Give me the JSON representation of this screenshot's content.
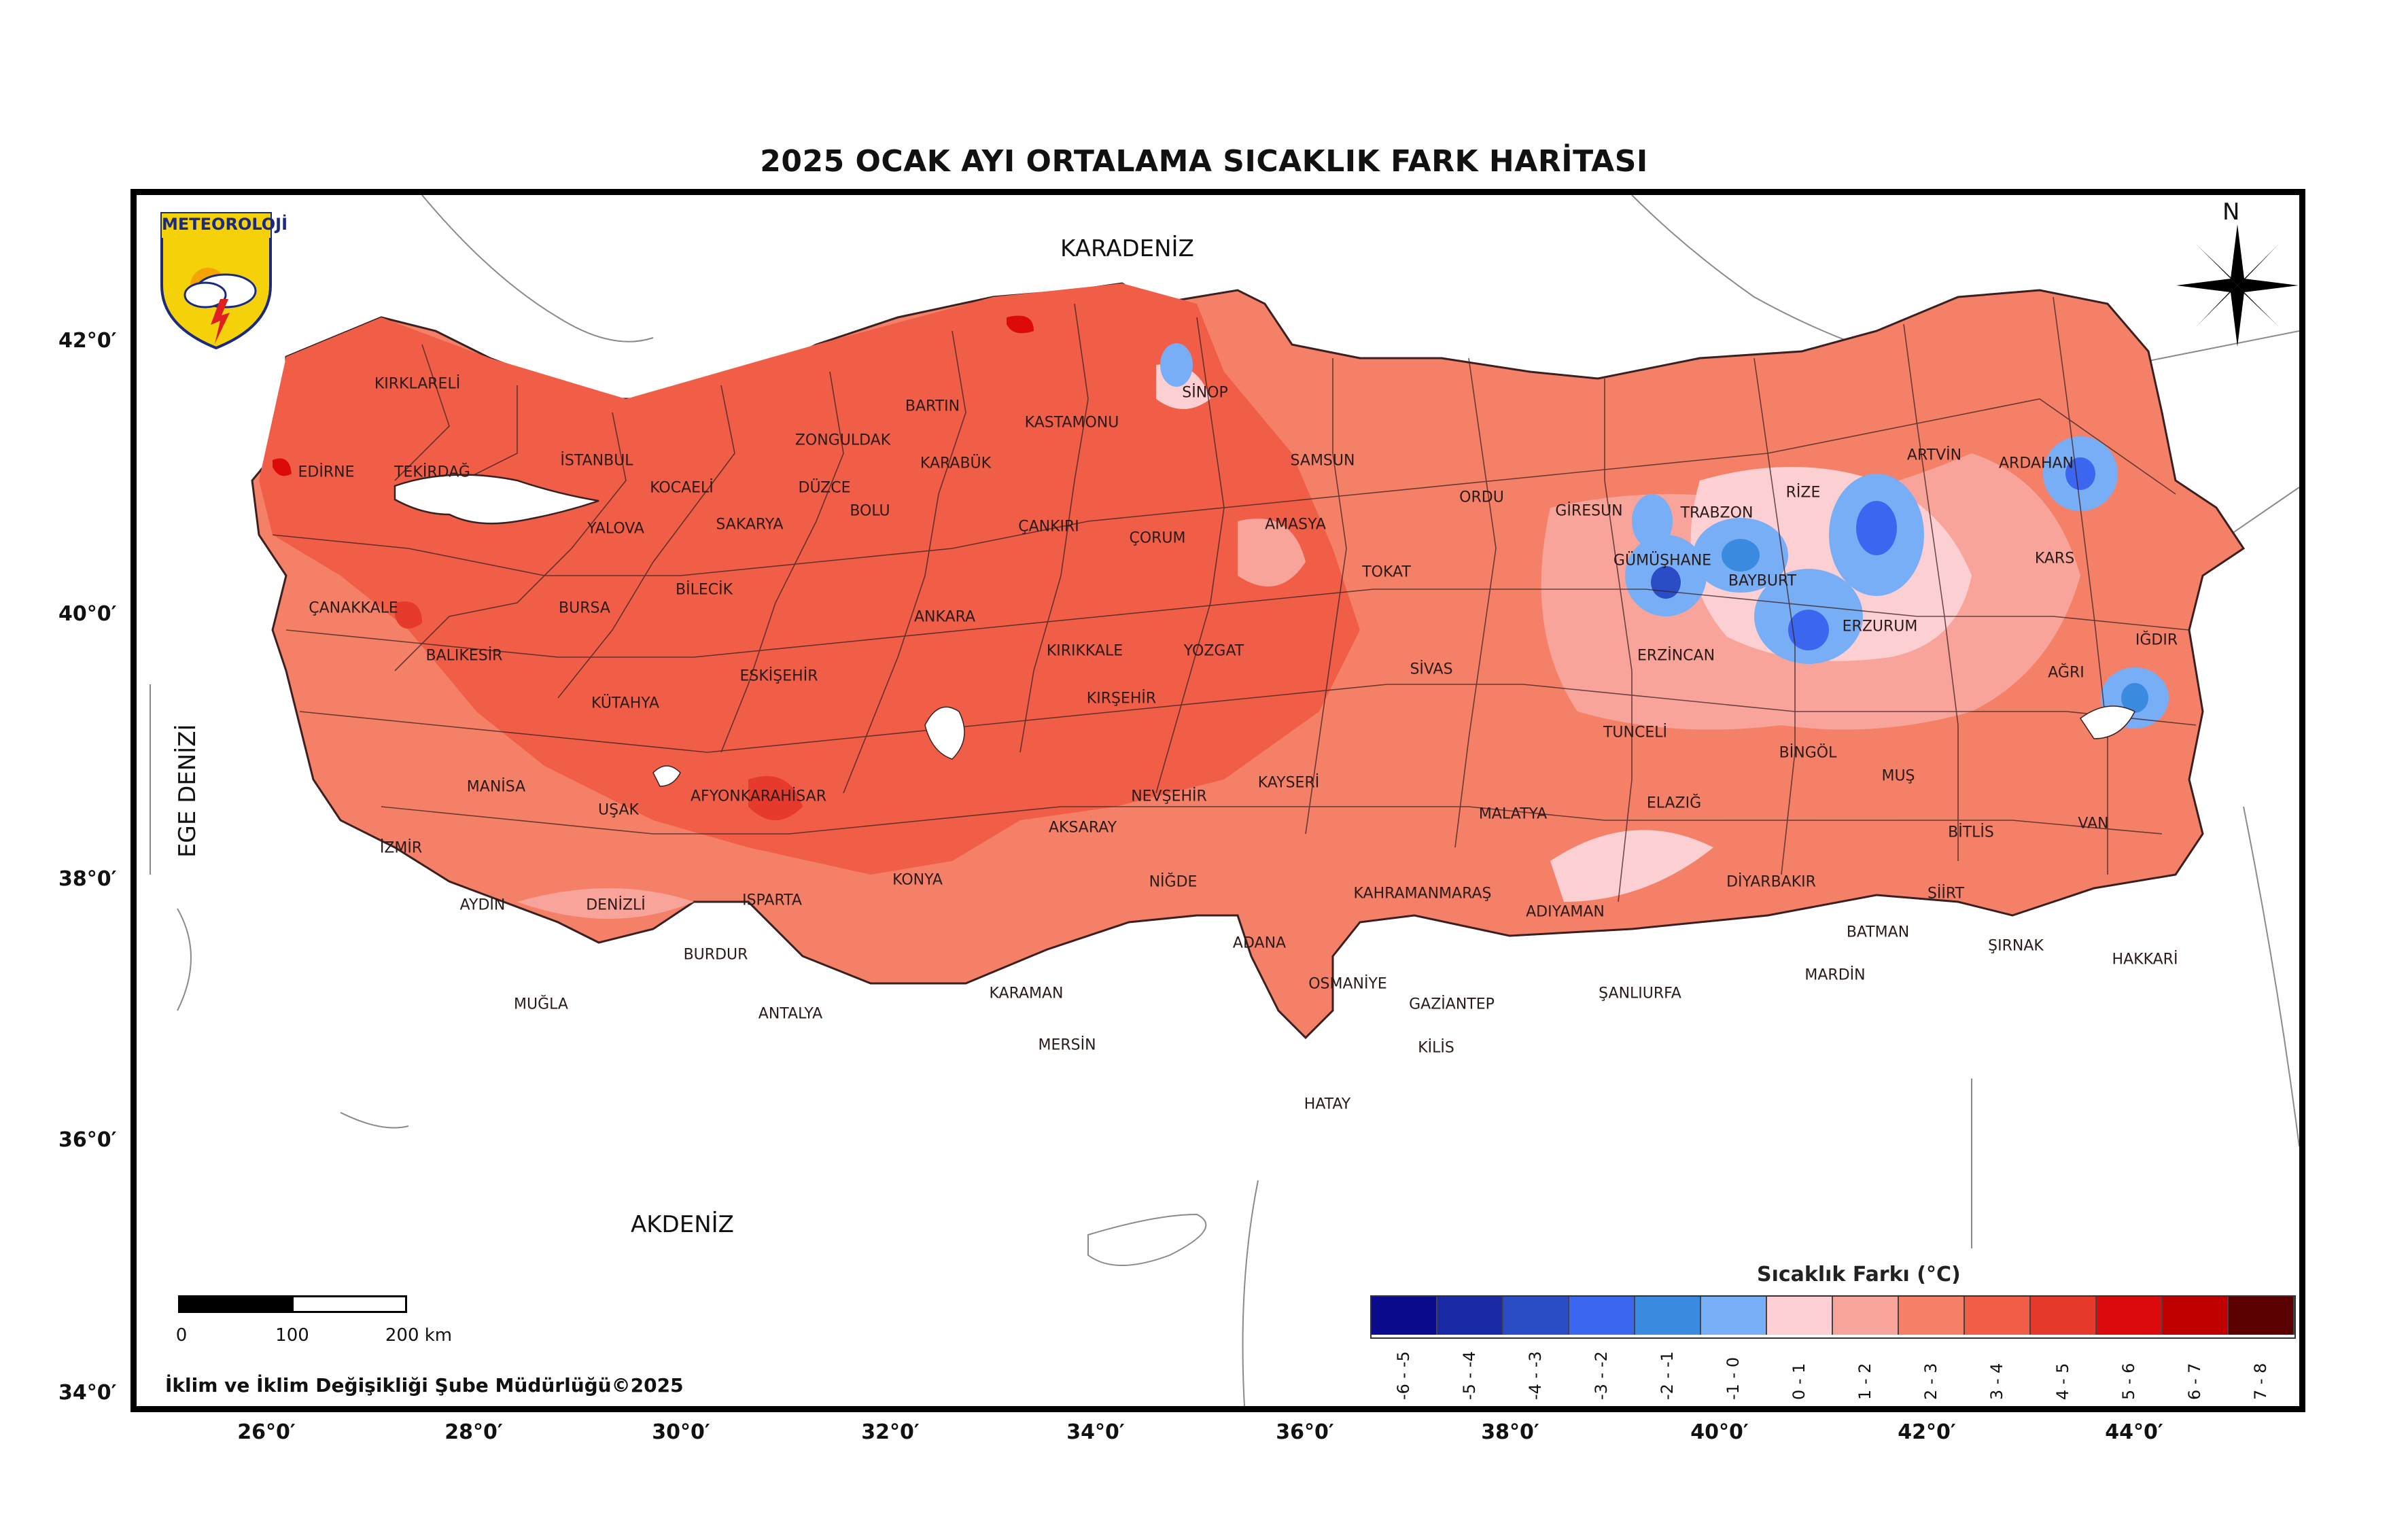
{
  "title": "2025 OCAK AYI ORTALAMA SICAKLIK FARK HARİTASI",
  "seas": {
    "karadeniz": "KARADENİZ",
    "akdeniz": "AKDENİZ",
    "ege": "EGE DENİZİ"
  },
  "latitude_labels": [
    "42°0′",
    "40°0′",
    "38°0′",
    "36°0′",
    "34°0′"
  ],
  "longitude_labels": [
    "26°0′",
    "28°0′",
    "30°0′",
    "32°0′",
    "34°0′",
    "36°0′",
    "38°0′",
    "40°0′",
    "42°0′",
    "44°0′"
  ],
  "logo": {
    "text": "METEOROLOJİ",
    "icon": "weather-cloud-lightning-icon"
  },
  "compass": {
    "north_label": "N",
    "icon": "compass-rose-icon"
  },
  "scale_bar": {
    "labels": [
      "0",
      "100",
      "200 km"
    ]
  },
  "credit": "İklim ve İklim Değişikliği Şube Müdürlüğü©2025",
  "legend": {
    "title": "Sıcaklık Farkı (°C)",
    "classes": [
      {
        "label": "-6 - -5",
        "color": "#0a0a8c"
      },
      {
        "label": "-5 - -4",
        "color": "#1a2aa6"
      },
      {
        "label": "-4 - -3",
        "color": "#2a4cc4"
      },
      {
        "label": "-3 - -2",
        "color": "#3a66f0"
      },
      {
        "label": "-2 - -1",
        "color": "#3a8ae0"
      },
      {
        "label": "-1 - 0",
        "color": "#78aef6"
      },
      {
        "label": "0 - 1",
        "color": "#fcd0d2"
      },
      {
        "label": "1 - 2",
        "color": "#f9a49a"
      },
      {
        "label": "2 - 3",
        "color": "#f58068"
      },
      {
        "label": "3 - 4",
        "color": "#f05e48"
      },
      {
        "label": "4 - 5",
        "color": "#e63a2c"
      },
      {
        "label": "5 - 6",
        "color": "#dc0a0a"
      },
      {
        "label": "6 - 7",
        "color": "#c00000"
      },
      {
        "label": "7 - 8",
        "color": "#5a0000"
      }
    ]
  },
  "provinces": [
    "KIRKLARELİ",
    "EDİRNE",
    "TEKİRDAĞ",
    "İSTANBUL",
    "KOCAELİ",
    "DÜZCE",
    "ZONGULDAK",
    "BARTIN",
    "KARABÜK",
    "KASTAMONU",
    "SİNOP",
    "SAMSUN",
    "ORDU",
    "GİRESUN",
    "TRABZON",
    "RİZE",
    "ARTVİN",
    "ARDAHAN",
    "KARS",
    "IĞDIR",
    "AĞRI",
    "ERZURUM",
    "BAYBURT",
    "GÜMÜŞHANE",
    "ERZİNCAN",
    "TUNCELİ",
    "BİNGÖL",
    "MUŞ",
    "VAN",
    "BİTLİS",
    "SİİRT",
    "ŞIRNAK",
    "HAKKARİ",
    "BATMAN",
    "MARDİN",
    "DİYARBAKIR",
    "ELAZIĞ",
    "MALATYA",
    "ADIYAMAN",
    "ŞANLIURFA",
    "GAZİANTEP",
    "KİLİS",
    "OSMANİYE",
    "HATAY",
    "ADANA",
    "KAHRAMANMARAŞ",
    "KAYSERİ",
    "SİVAS",
    "TOKAT",
    "AMASYA",
    "ÇORUM",
    "YOZGAT",
    "KIRIKKALE",
    "KIRŞEHİR",
    "NEVŞEHİR",
    "AKSARAY",
    "NİĞDE",
    "KONYA",
    "KARAMAN",
    "MERSİN",
    "ANTALYA",
    "BURDUR",
    "ISPARTA",
    "AFYONKARAHİSAR",
    "UŞAK",
    "DENİZLİ",
    "AYDIN",
    "MUĞLA",
    "İZMİR",
    "MANİSA",
    "BALIKESİR",
    "ÇANAKKALE",
    "BURSA",
    "BİLECİK",
    "ESKİŞEHİR",
    "KÜTAHYA",
    "YALOVA",
    "SAKARYA",
    "BOLU",
    "ÇANKIRI",
    "ANKARA"
  ]
}
